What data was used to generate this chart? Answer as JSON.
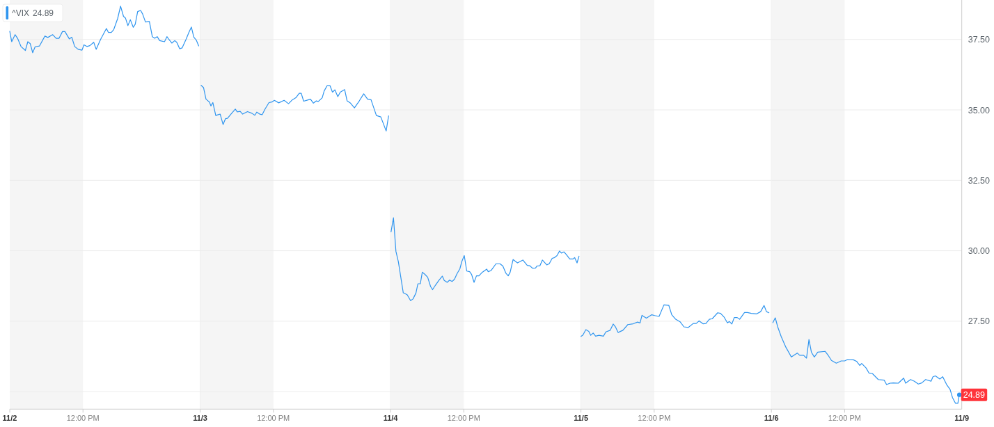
{
  "chart_data": [
    {
      "type": "line",
      "xlim": [
        "--11-02T09:30",
        "--11-02T16:00"
      ],
      "xticks": [
        {
          "value": "--11-02T09:30",
          "label": "11/2"
        },
        {
          "value": "--11-02T12:00",
          "label": "12:00 PM"
        }
      ],
      "ylim": [
        24.38,
        38.9
      ],
      "yticks": [
        25,
        27.5,
        30,
        32.5,
        35,
        37.5
      ],
      "tick_labels": "x",
      "grid": "y",
      "legend": "top left",
      "bands": [
        {
          "axis": "x",
          "from": "--11-02T09:30",
          "to": "--11-02T12:00",
          "color": "#f5f5f5"
        }
      ],
      "x": [
        "--11-02T09:30",
        "--11-02T09:34",
        "--11-02T09:41",
        "--11-02T09:46",
        "--11-02T09:53",
        "--11-02T10:02",
        "--11-02T10:07",
        "--11-02T10:12",
        "--11-02T10:17",
        "--11-02T10:22",
        "--11-02T10:31",
        "--11-02T10:42",
        "--11-02T10:48",
        "--11-02T10:58",
        "--11-02T11:05",
        "--11-02T11:11",
        "--11-02T11:18",
        "--11-02T11:23",
        "--11-02T11:32",
        "--11-02T11:37",
        "--11-02T11:43",
        "--11-02T11:50",
        "--11-02T11:58",
        "--11-02T12:02",
        "--11-02T12:08",
        "--11-02T12:14",
        "--11-02T12:22",
        "--11-02T12:27",
        "--11-02T12:36",
        "--11-02T12:48",
        "--11-02T12:52",
        "--11-02T12:58",
        "--11-02T13:03",
        "--11-02T13:11",
        "--11-02T13:17",
        "--11-02T13:23",
        "--11-02T13:27",
        "--11-02T13:32",
        "--11-02T13:37",
        "--11-02T13:43",
        "--11-02T13:47",
        "--11-02T13:52",
        "--11-02T13:58",
        "--11-02T14:02",
        "--11-02T14:08",
        "--11-02T14:16",
        "--11-02T14:22",
        "--11-02T14:27",
        "--11-02T14:32",
        "--11-02T14:37",
        "--11-02T14:47",
        "--11-02T14:52",
        "--11-02T14:56",
        "--11-02T15:02",
        "--11-02T15:08",
        "--11-02T15:12",
        "--11-02T15:18",
        "--11-02T15:23",
        "--11-02T15:31",
        "--11-02T15:37",
        "--11-02T15:42",
        "--11-02T15:47",
        "--11-02T15:52",
        "--11-02T15:57"
      ],
      "series": [
        {
          "name": "^VIX",
          "color": "#2f95ef",
          "values": [
            37.79,
            37.42,
            37.67,
            37.54,
            37.25,
            37.11,
            37.42,
            37.35,
            37.03,
            37.24,
            37.27,
            37.62,
            37.57,
            37.67,
            37.54,
            37.54,
            37.78,
            37.78,
            37.52,
            37.58,
            37.25,
            37.15,
            37.12,
            37.31,
            37.25,
            37.28,
            37.4,
            37.15,
            37.5,
            37.89,
            37.75,
            37.75,
            37.85,
            38.24,
            38.68,
            38.32,
            38.26,
            37.99,
            38.2,
            37.93,
            38.04,
            38.49,
            38.53,
            38.41,
            38.12,
            38.14,
            37.6,
            37.54,
            37.6,
            37.46,
            37.42,
            37.6,
            37.5,
            37.37,
            37.46,
            37.4,
            37.17,
            37.2,
            37.5,
            37.75,
            37.94,
            37.58,
            37.48,
            37.27
          ]
        }
      ]
    },
    {
      "type": "line",
      "xlim": [
        "--11-03T09:30",
        "--11-03T16:00"
      ],
      "xticks": [
        {
          "value": "--11-03T09:30",
          "label": "11/3"
        },
        {
          "value": "--11-03T12:00",
          "label": "12:00 PM"
        }
      ],
      "ylim": [
        24.38,
        38.9
      ],
      "yticks": [
        25,
        27.5,
        30,
        32.5,
        35,
        37.5
      ],
      "tick_labels": "x",
      "grid": "y",
      "bands": [
        {
          "axis": "x",
          "from": "--11-03T09:30",
          "to": "--11-03T12:00",
          "color": "#f5f5f5"
        }
      ],
      "x": [
        "--11-03T09:32",
        "--11-03T09:37",
        "--11-03T09:42",
        "--11-03T09:49",
        "--11-03T09:52",
        "--11-03T09:56",
        "--11-03T10:02",
        "--11-03T10:07",
        "--11-03T10:11",
        "--11-03T10:17",
        "--11-03T10:22",
        "--11-03T10:26",
        "--11-03T10:34",
        "--11-03T10:42",
        "--11-03T10:46",
        "--11-03T10:52",
        "--11-03T10:57",
        "--11-03T11:07",
        "--11-03T11:16",
        "--11-03T11:22",
        "--11-03T11:26",
        "--11-03T11:32",
        "--11-03T11:37",
        "--11-03T11:43",
        "--11-03T11:51",
        "--11-03T11:57",
        "--11-03T12:02",
        "--11-03T12:11",
        "--11-03T12:22",
        "--11-03T12:31",
        "--11-03T12:39",
        "--11-03T12:46",
        "--11-03T12:53",
        "--11-03T12:57",
        "--11-03T13:02",
        "--11-03T13:10",
        "--11-03T13:16",
        "--11-03T13:22",
        "--11-03T13:28",
        "--11-03T13:32",
        "--11-03T13:40",
        "--11-03T13:44",
        "--11-03T13:50",
        "--11-03T13:56",
        "--11-03T14:01",
        "--11-03T14:06",
        "--11-03T14:12",
        "--11-03T14:17",
        "--11-03T14:26",
        "--11-03T14:31",
        "--11-03T14:38",
        "--11-03T14:46",
        "--11-03T14:56",
        "--11-03T15:05",
        "--11-03T15:13",
        "--11-03T15:20",
        "--11-03T15:31",
        "--11-03T15:40",
        "--11-03T15:51",
        "--11-03T15:56"
      ],
      "series": [
        {
          "color": "#2f95ef",
          "values": [
            35.87,
            35.79,
            35.38,
            35.28,
            35.14,
            35.26,
            34.8,
            34.83,
            34.85,
            34.48,
            34.69,
            34.7,
            34.87,
            35.03,
            34.93,
            34.95,
            34.85,
            34.94,
            34.88,
            34.81,
            34.92,
            34.85,
            34.83,
            35.03,
            35.26,
            35.28,
            35.34,
            35.25,
            35.34,
            35.22,
            35.36,
            35.43,
            35.59,
            35.59,
            35.31,
            35.35,
            35.38,
            35.24,
            35.32,
            35.3,
            35.43,
            35.67,
            35.86,
            35.86,
            35.63,
            35.71,
            35.47,
            35.63,
            35.72,
            35.32,
            35.24,
            35.07,
            35.32,
            35.57,
            35.38,
            35.36,
            34.8,
            34.75,
            34.25,
            34.79
          ]
        }
      ]
    },
    {
      "type": "line",
      "xlim": [
        "--11-04T09:30",
        "--11-04T16:00"
      ],
      "xticks": [
        {
          "value": "--11-04T09:30",
          "label": "11/4"
        },
        {
          "value": "--11-04T12:00",
          "label": "12:00 PM"
        }
      ],
      "ylim": [
        24.38,
        38.9
      ],
      "yticks": [
        25,
        27.5,
        30,
        32.5,
        35,
        37.5
      ],
      "tick_labels": "x",
      "grid": "y",
      "bands": [
        {
          "axis": "x",
          "from": "--11-04T09:30",
          "to": "--11-04T12:00",
          "color": "#f5f5f5"
        }
      ],
      "x": [
        "--11-04T09:31",
        "--11-04T09:36",
        "--11-04T09:41",
        "--11-04T09:46",
        "--11-04T09:56",
        "--11-04T10:04",
        "--11-04T10:11",
        "--11-04T10:16",
        "--11-04T10:22",
        "--11-04T10:26",
        "--11-04T10:31",
        "--11-04T10:35",
        "--11-04T10:40",
        "--11-04T10:46",
        "--11-04T10:52",
        "--11-04T10:56",
        "--11-04T11:02",
        "--11-04T11:09",
        "--11-04T11:16",
        "--11-04T11:20",
        "--11-04T11:26",
        "--11-04T11:31",
        "--11-04T11:36",
        "--11-04T11:41",
        "--11-04T11:46",
        "--11-04T11:52",
        "--11-04T11:56",
        "--11-04T12:01",
        "--11-04T12:06",
        "--11-04T12:12",
        "--11-04T12:16",
        "--11-04T12:21",
        "--11-04T12:26",
        "--11-04T12:31",
        "--11-04T12:38",
        "--11-04T12:47",
        "--11-04T12:50",
        "--11-04T12:56",
        "--11-04T13:06",
        "--11-04T13:14",
        "--11-04T13:20",
        "--11-04T13:26",
        "--11-04T13:31",
        "--11-04T13:35",
        "--11-04T13:41",
        "--11-04T13:50",
        "--11-04T14:01",
        "--11-04T14:10",
        "--11-04T14:15",
        "--11-04T14:21",
        "--11-04T14:27",
        "--11-04T14:30",
        "--11-04T14:36",
        "--11-04T14:41",
        "--11-04T14:50",
        "--11-04T14:55",
        "--11-04T15:01",
        "--11-04T15:06",
        "--11-04T15:11",
        "--11-04T15:16",
        "--11-04T15:20",
        "--11-04T15:25",
        "--11-04T15:29",
        "--11-04T15:37",
        "--11-04T15:44",
        "--11-04T15:47",
        "--11-04T15:52",
        "--11-04T15:56"
      ],
      "series": [
        {
          "color": "#2f95ef",
          "values": [
            30.67,
            31.17,
            29.98,
            29.61,
            28.51,
            28.44,
            28.23,
            28.29,
            28.5,
            28.83,
            28.83,
            29.24,
            29.17,
            29.06,
            28.73,
            28.62,
            28.78,
            28.95,
            29.1,
            28.95,
            28.88,
            28.96,
            28.91,
            28.99,
            29.18,
            29.36,
            29.62,
            29.83,
            29.28,
            29.26,
            29.16,
            28.88,
            29.11,
            29.11,
            29.24,
            29.35,
            29.26,
            29.3,
            29.54,
            29.54,
            29.46,
            29.21,
            29.11,
            29.24,
            29.69,
            29.57,
            29.67,
            29.48,
            29.47,
            29.38,
            29.39,
            29.46,
            29.47,
            29.67,
            29.5,
            29.54,
            29.73,
            29.76,
            29.83,
            29.99,
            29.92,
            29.96,
            29.89,
            29.71,
            29.71,
            29.76,
            29.57,
            29.81
          ]
        }
      ]
    },
    {
      "type": "line",
      "xlim": [
        "--11-05T09:30",
        "--11-05T16:00"
      ],
      "xticks": [
        {
          "value": "--11-05T09:30",
          "label": "11/5"
        },
        {
          "value": "--11-05T12:00",
          "label": "12:00 PM"
        }
      ],
      "ylim": [
        24.38,
        38.9
      ],
      "yticks": [
        25,
        27.5,
        30,
        32.5,
        35,
        37.5
      ],
      "tick_labels": "x",
      "grid": "y",
      "bands": [
        {
          "axis": "x",
          "from": "--11-05T09:30",
          "to": "--11-05T12:00",
          "color": "#f5f5f5"
        }
      ],
      "x": [
        "--11-05T09:30",
        "--11-05T09:34",
        "--11-05T09:40",
        "--11-05T09:46",
        "--11-05T09:50",
        "--11-05T09:55",
        "--11-05T10:00",
        "--11-05T10:07",
        "--11-05T10:16",
        "--11-05T10:21",
        "--11-05T10:30",
        "--11-05T10:36",
        "--11-05T10:41",
        "--11-05T10:46",
        "--11-05T10:56",
        "--11-05T11:06",
        "--11-05T11:17",
        "--11-05T11:26",
        "--11-05T11:31",
        "--11-05T11:35",
        "--11-05T11:44",
        "--11-05T11:55",
        "--11-05T12:01",
        "--11-05T12:10",
        "--11-05T12:20",
        "--11-05T12:30",
        "--11-05T12:36",
        "--11-05T12:44",
        "--11-05T12:53",
        "--11-05T13:01",
        "--11-05T13:10",
        "--11-05T13:20",
        "--11-05T13:26",
        "--11-05T13:32",
        "--11-05T13:40",
        "--11-05T13:46",
        "--11-05T13:53",
        "--11-05T13:59",
        "--11-05T14:10",
        "--11-05T14:16",
        "--11-05T14:23",
        "--11-05T14:30",
        "--11-05T14:34",
        "--11-05T14:39",
        "--11-05T14:44",
        "--11-05T14:50",
        "--11-05T14:55",
        "--11-05T15:05",
        "--11-05T15:11",
        "--11-05T15:19",
        "--11-05T15:30",
        "--11-05T15:38",
        "--11-05T15:45",
        "--11-05T15:50",
        "--11-05T15:55"
      ],
      "series": [
        {
          "color": "#2f95ef",
          "values": [
            26.96,
            27.01,
            27.2,
            27.14,
            27.0,
            27.08,
            26.97,
            27.0,
            26.97,
            27.12,
            27.18,
            27.4,
            27.29,
            27.1,
            27.18,
            27.38,
            27.41,
            27.47,
            27.44,
            27.71,
            27.61,
            27.73,
            27.7,
            27.67,
            28.08,
            28.06,
            27.73,
            27.57,
            27.48,
            27.3,
            27.28,
            27.42,
            27.42,
            27.51,
            27.41,
            27.42,
            27.57,
            27.59,
            27.8,
            27.78,
            27.65,
            27.44,
            27.49,
            27.4,
            27.63,
            27.63,
            27.57,
            27.81,
            27.81,
            27.78,
            27.76,
            27.84,
            28.06,
            27.84,
            27.8
          ]
        }
      ]
    },
    {
      "type": "line",
      "xlim": [
        "--11-06T09:30",
        "--11-06T16:00"
      ],
      "xticks": [
        {
          "value": "--11-06T09:30",
          "label": "11/6"
        },
        {
          "value": "--11-06T12:00",
          "label": "12:00 PM"
        }
      ],
      "ylim": [
        24.38,
        38.9
      ],
      "yticks": [
        {
          "value": 25,
          "label": null
        },
        {
          "value": 27.5,
          "label": "27.50"
        },
        {
          "value": 30,
          "label": "30.00"
        },
        {
          "value": 32.5,
          "label": "32.50"
        },
        {
          "value": 35,
          "label": "35.00"
        },
        {
          "value": 37.5,
          "label": "37.50"
        }
      ],
      "grid": "y",
      "bands": [
        {
          "axis": "x",
          "from": "--11-06T09:30",
          "to": "--11-06T12:00",
          "color": "#f5f5f5"
        }
      ],
      "annotations": [
        {
          "text": "24.89",
          "x": "--11-06T15:55",
          "y": 24.89
        },
        "11/9"
      ],
      "x": [
        "--11-06T09:33",
        "--11-06T09:38",
        "--11-06T09:43",
        "--11-06T09:50",
        "--11-06T09:59",
        "--11-06T10:11",
        "--11-06T10:23",
        "--11-06T10:28",
        "--11-06T10:36",
        "--11-06T10:42",
        "--11-06T10:47",
        "--11-06T10:52",
        "--11-06T10:58",
        "--11-06T11:05",
        "--11-06T11:20",
        "--11-06T11:26",
        "--11-06T11:33",
        "--11-06T11:43",
        "--11-06T11:53",
        "--11-06T12:00",
        "--11-06T12:06",
        "--11-06T12:18",
        "--11-06T12:25",
        "--11-06T12:31",
        "--11-06T12:35",
        "--11-06T12:44",
        "--11-06T12:50",
        "--11-06T12:57",
        "--11-06T13:09",
        "--11-06T13:21",
        "--11-06T13:26",
        "--11-06T13:33",
        "--11-06T13:40",
        "--11-06T13:50",
        "--11-06T14:01",
        "--11-06T14:05",
        "--11-06T14:15",
        "--11-06T14:23",
        "--11-06T14:31",
        "--11-06T14:38",
        "--11-06T14:46",
        "--11-06T14:57",
        "--11-06T15:01",
        "--11-06T15:06",
        "--11-06T15:15",
        "--11-06T15:21",
        "--11-06T15:29",
        "--11-06T15:36",
        "--11-06T15:41",
        "--11-06T15:47",
        "--11-06T15:52",
        "--11-06T15:55"
      ],
      "series": [
        {
          "color": "#2f95ef",
          "values": [
            27.45,
            27.62,
            27.3,
            26.96,
            26.6,
            26.23,
            26.37,
            26.29,
            26.29,
            26.19,
            26.85,
            26.4,
            26.23,
            26.4,
            26.43,
            26.3,
            26.11,
            26.01,
            26.09,
            26.09,
            26.14,
            26.13,
            26.07,
            25.93,
            26.0,
            25.84,
            25.66,
            25.64,
            25.43,
            25.41,
            25.25,
            25.3,
            25.31,
            25.3,
            25.48,
            25.3,
            25.43,
            25.37,
            25.27,
            25.31,
            25.43,
            25.37,
            25.53,
            25.56,
            25.45,
            25.53,
            25.25,
            25.08,
            24.79,
            24.59,
            24.59,
            24.89
          ]
        }
      ]
    }
  ]
}
